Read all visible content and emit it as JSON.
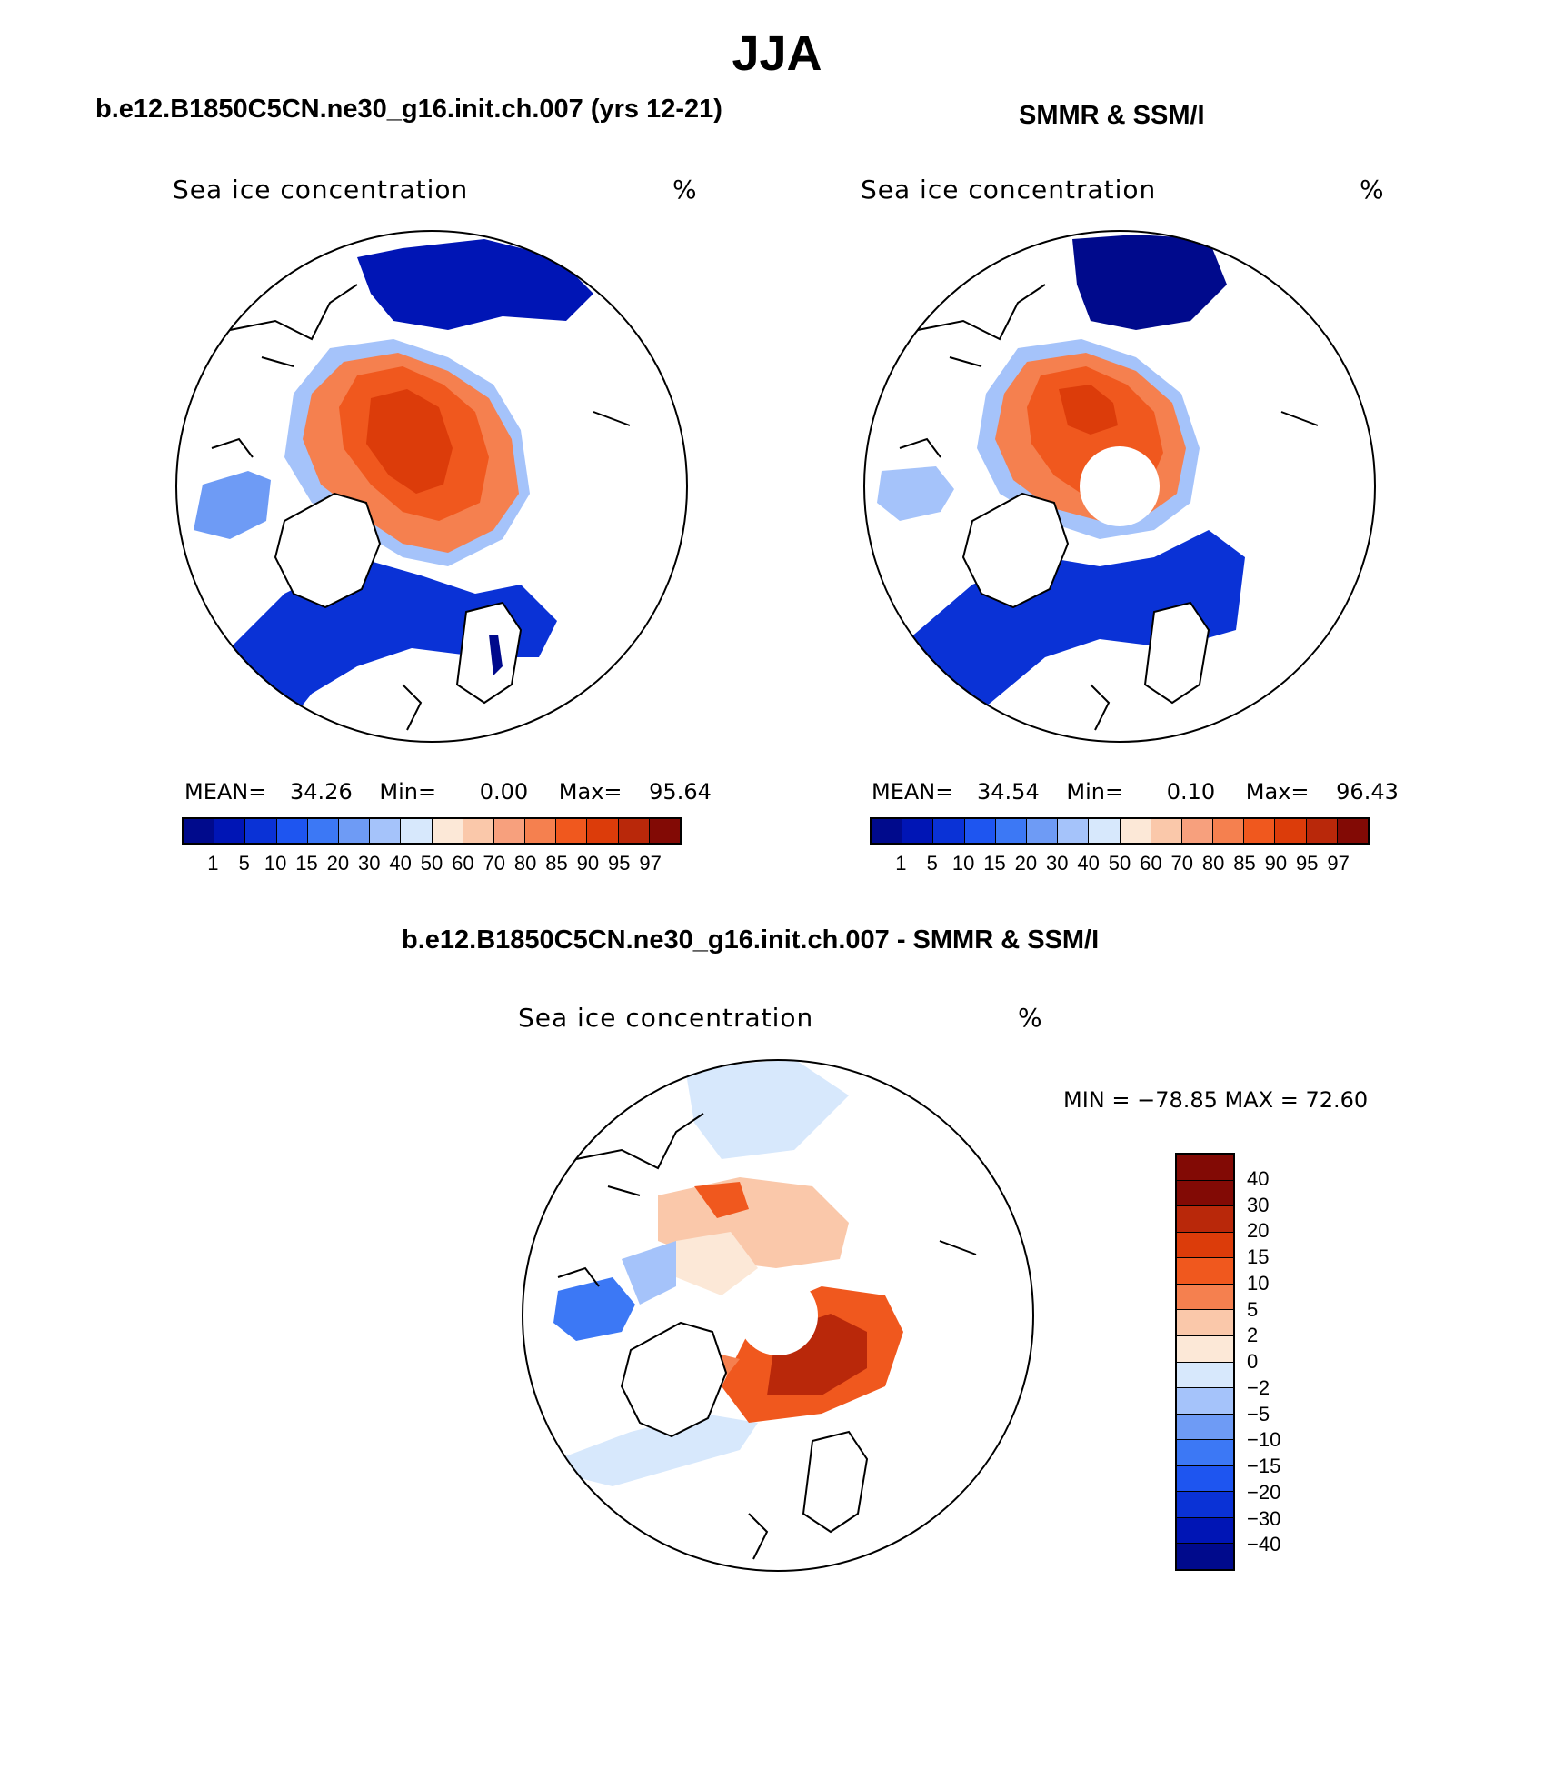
{
  "main_title": "JJA",
  "panels": {
    "model": {
      "subtitle": "b.e12.B1850C5CN.ne30_g16.init.ch.007 (yrs 12-21)",
      "label": "Sea ice concentration",
      "units": "%",
      "stats": {
        "mean_label": "MEAN=",
        "mean": "34.26",
        "min_label": "Min=",
        "min": "0.00",
        "max_label": "Max=",
        "max": "95.64"
      }
    },
    "obs": {
      "subtitle": "SMMR & SSM/I",
      "label": "Sea ice concentration",
      "units": "%",
      "stats": {
        "mean_label": "MEAN=",
        "mean": "34.54",
        "min_label": "Min=",
        "min": "0.10",
        "max_label": "Max=",
        "max": "96.43"
      }
    },
    "diff": {
      "subtitle": "b.e12.B1850C5CN.ne30_g16.init.ch.007 - SMMR & SSM/I",
      "label": "Sea ice concentration",
      "units": "%",
      "stats": {
        "text": "MIN = −78.85 MAX =   72.60"
      }
    }
  },
  "colorbar_concentration": {
    "colors": [
      "#000a8c",
      "#0015b5",
      "#0a32d6",
      "#1e55f0",
      "#3c78f5",
      "#6e9bf5",
      "#a5c3fa",
      "#d7e8fc",
      "#fce8d7",
      "#fac8aa",
      "#f7a07d",
      "#f5804f",
      "#f0581e",
      "#dc3c0a",
      "#b9280a",
      "#820a05"
    ],
    "ticks": [
      "1",
      "5",
      "10",
      "15",
      "20",
      "30",
      "40",
      "50",
      "60",
      "70",
      "80",
      "85",
      "90",
      "95",
      "97"
    ]
  },
  "colorbar_difference": {
    "colors": [
      "#820a05",
      "#b9280a",
      "#dc3c0a",
      "#f0581e",
      "#f5804f",
      "#fac8aa",
      "#fce8d7",
      "#d7e8fc",
      "#a5c3fa",
      "#6e9bf5",
      "#3c78f5",
      "#1e55f0",
      "#0a32d6",
      "#0015b5",
      "#000a8c"
    ],
    "ticks": [
      "40",
      "30",
      "20",
      "15",
      "10",
      "5",
      "2",
      "0",
      "−2",
      "−5",
      "−10",
      "−15",
      "−20",
      "−30",
      "−40"
    ]
  }
}
